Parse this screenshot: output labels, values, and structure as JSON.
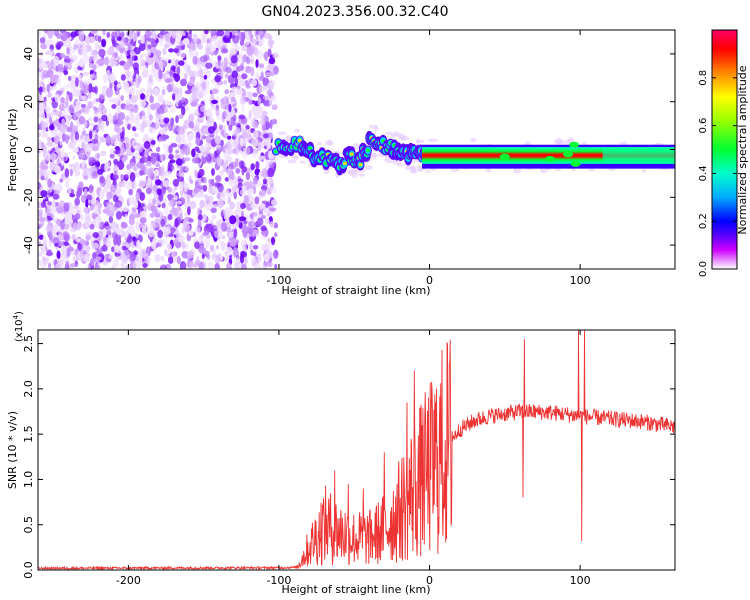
{
  "title": "GN04.2023.356.00.32.C40",
  "chart_data": [
    {
      "type": "heatmap",
      "xlabel": "Height of straight line (km)",
      "ylabel": "Frequency (Hz)",
      "xlim": [
        -260,
        163
      ],
      "ylim": [
        -50,
        50
      ],
      "xticks": [
        -200,
        -100,
        0,
        100
      ],
      "yticks": [
        -40,
        -20,
        0,
        20,
        40
      ],
      "colorbar": {
        "label": "Normalized spectral amplitude",
        "range": [
          0,
          1
        ],
        "ticks": [
          "0.0",
          "0.2",
          "0.4",
          "0.6",
          "0.8"
        ],
        "tick_values": [
          0.0,
          0.2,
          0.4,
          0.6,
          0.8
        ],
        "colormap": [
          "#ffffff",
          "#cc00ff",
          "#5a00ff",
          "#0000ff",
          "#00aaff",
          "#00ffcc",
          "#00ff33",
          "#99ff00",
          "#ffff00",
          "#ff8800",
          "#ff0000",
          "#ff0066"
        ]
      },
      "regions": [
        {
          "kind": "noise",
          "x": [
            -260,
            -102
          ],
          "y": [
            -50,
            50
          ]
        },
        {
          "kind": "signal",
          "x": [
            -102,
            163
          ],
          "center_freq": [
            1,
            -4
          ],
          "bandwidth_hz": 6
        }
      ]
    },
    {
      "type": "line",
      "xlabel": "Height of straight line (km)",
      "ylabel": "SNR (10 * v/v)",
      "yscale_label": "(x10",
      "yscale_exp": "4",
      "yscale_suffix": ")",
      "xlim": [
        -260,
        163
      ],
      "ylim": [
        0,
        26500
      ],
      "xticks": [
        -200,
        -100,
        0,
        100
      ],
      "yticks": [
        "0.0",
        "0.5",
        "1.0",
        "1.5",
        "2.0",
        "2.5"
      ],
      "ytick_values": [
        0,
        5000,
        10000,
        15000,
        20000,
        25000
      ],
      "color": "#ee3333",
      "keypoints": [
        {
          "x": -260,
          "y": 200
        },
        {
          "x": -100,
          "y": 250
        },
        {
          "x": -88,
          "y": 300
        },
        {
          "x": -80,
          "y": 2500
        },
        {
          "x": -70,
          "y": 5000
        },
        {
          "x": -60,
          "y": 4200
        },
        {
          "x": -50,
          "y": 3500
        },
        {
          "x": -40,
          "y": 3500
        },
        {
          "x": -30,
          "y": 4500
        },
        {
          "x": -20,
          "y": 6500
        },
        {
          "x": -10,
          "y": 9000
        },
        {
          "x": 0,
          "y": 11000
        },
        {
          "x": 10,
          "y": 13500
        },
        {
          "x": 20,
          "y": 15500
        },
        {
          "x": 30,
          "y": 16500
        },
        {
          "x": 40,
          "y": 17000
        },
        {
          "x": 60,
          "y": 17500
        },
        {
          "x": 80,
          "y": 17400
        },
        {
          "x": 100,
          "y": 17000
        },
        {
          "x": 120,
          "y": 16700
        },
        {
          "x": 140,
          "y": 16400
        },
        {
          "x": 163,
          "y": 15800
        }
      ],
      "spikes": [
        {
          "x": -63,
          "y": 11000
        },
        {
          "x": -54,
          "y": 9500
        },
        {
          "x": -44,
          "y": 9000
        },
        {
          "x": -30,
          "y": 13000
        },
        {
          "x": -15,
          "y": 18500
        },
        {
          "x": -10,
          "y": 22000
        },
        {
          "x": -5,
          "y": 16000
        },
        {
          "x": 62,
          "y": 8000
        },
        {
          "x": 63,
          "y": 25500
        },
        {
          "x": 99,
          "y": 26500
        },
        {
          "x": 101,
          "y": 3200
        },
        {
          "x": 103,
          "y": 26500
        }
      ]
    }
  ]
}
